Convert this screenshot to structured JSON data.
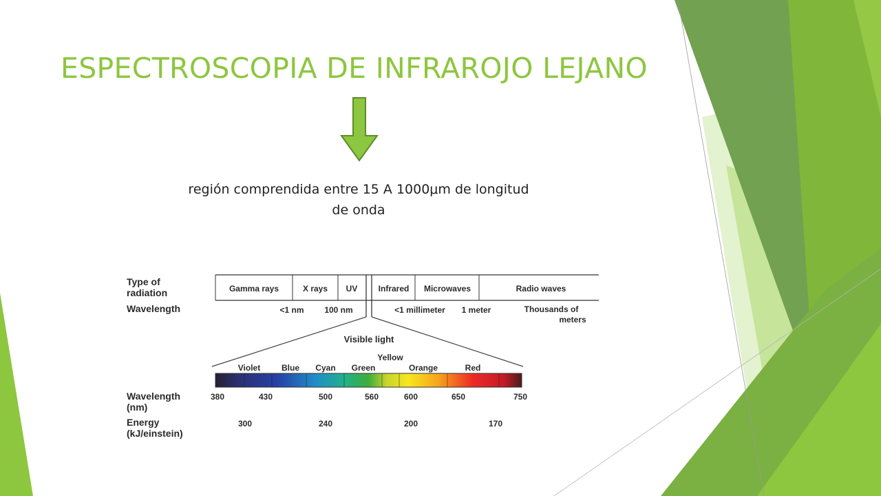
{
  "slide": {
    "title": "ESPECTROSCOPIA DE INFRAROJO LEJANO",
    "subtitle": "región comprendida entre 15 A 1000μm de longitud de onda",
    "accent_color": "#8dc63f",
    "arrow_icon": "down-arrow-icon"
  },
  "diagram": {
    "row_labels": {
      "type": [
        "Type of",
        "radiation"
      ],
      "wavelength": "Wavelength",
      "visible_wavelength": [
        "Wavelength",
        "(nm)"
      ],
      "energy": [
        "Energy",
        "(kJ/einstein)"
      ]
    },
    "radiation_types": [
      "Gamma rays",
      "X rays",
      "UV",
      "Infrared",
      "Microwaves",
      "Radio waves"
    ],
    "wavelength_markers": [
      "<1 nm",
      "100 nm",
      "<1 millimeter",
      "1 meter"
    ],
    "wavelength_far": [
      "Thousands of",
      "meters"
    ],
    "visible_title": "Visible light",
    "colors": [
      "Violet",
      "Blue",
      "Cyan",
      "Green",
      "Yellow",
      "Orange",
      "Red"
    ],
    "nm_ticks": [
      "380",
      "430",
      "500",
      "560",
      "600",
      "650",
      "750"
    ],
    "energy_ticks": [
      "300",
      "240",
      "200",
      "170"
    ]
  }
}
